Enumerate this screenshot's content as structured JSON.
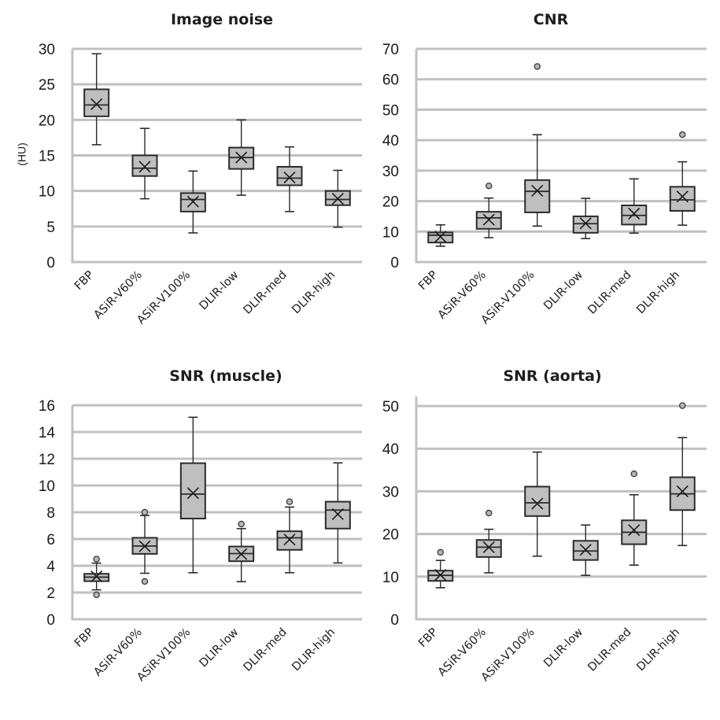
{
  "chart_data": [
    {
      "type": "box",
      "title": "Image noise",
      "xlabel": "",
      "ylabel": "(HU)",
      "ylim": [
        0,
        30
      ],
      "yticks": [
        0,
        5,
        10,
        15,
        20,
        25,
        30
      ],
      "grid": true,
      "categories": [
        "FBP",
        "ASiR-V60%",
        "ASiR-V100%",
        "DLIR-low",
        "DLIR-med",
        "DLIR-high"
      ],
      "series": [
        {
          "category": "FBP",
          "min": 16.5,
          "q1": 20.5,
          "median": 22.1,
          "q3": 24.3,
          "max": 29.3,
          "mean": 22.2,
          "outliers": []
        },
        {
          "category": "ASiR-V60%",
          "min": 8.9,
          "q1": 12.1,
          "median": 13.2,
          "q3": 15.0,
          "max": 18.8,
          "mean": 13.4,
          "outliers": []
        },
        {
          "category": "ASiR-V100%",
          "min": 4.1,
          "q1": 7.1,
          "median": 8.8,
          "q3": 9.7,
          "max": 12.8,
          "mean": 8.5,
          "outliers": []
        },
        {
          "category": "DLIR-low",
          "min": 9.4,
          "q1": 13.1,
          "median": 14.7,
          "q3": 16.1,
          "max": 20.0,
          "mean": 14.7,
          "outliers": []
        },
        {
          "category": "DLIR-med",
          "min": 7.1,
          "q1": 10.8,
          "median": 11.8,
          "q3": 13.4,
          "max": 16.2,
          "mean": 11.9,
          "outliers": []
        },
        {
          "category": "DLIR-high",
          "min": 4.9,
          "q1": 8.0,
          "median": 8.8,
          "q3": 10.0,
          "max": 12.9,
          "mean": 8.9,
          "outliers": []
        }
      ]
    },
    {
      "type": "box",
      "title": "CNR",
      "xlabel": "",
      "ylabel": "",
      "ylim": [
        0,
        70
      ],
      "yticks": [
        0,
        10,
        20,
        30,
        40,
        50,
        60,
        70
      ],
      "grid": true,
      "categories": [
        "FBP",
        "ASiR-V60%",
        "ASiR-V100%",
        "DLIR-low",
        "DLIR-med",
        "DLIR-high"
      ],
      "series": [
        {
          "category": "FBP",
          "min": 5.2,
          "q1": 6.4,
          "median": 8.8,
          "q3": 9.7,
          "max": 12.2,
          "mean": 8.3,
          "outliers": []
        },
        {
          "category": "ASiR-V60%",
          "min": 8.0,
          "q1": 10.9,
          "median": 14.5,
          "q3": 16.5,
          "max": 21.0,
          "mean": 13.9,
          "outliers": [
            25.0
          ]
        },
        {
          "category": "ASiR-V100%",
          "min": 11.8,
          "q1": 16.3,
          "median": 23.2,
          "q3": 26.9,
          "max": 41.8,
          "mean": 23.4,
          "outliers": [
            64.2
          ]
        },
        {
          "category": "DLIR-low",
          "min": 7.7,
          "q1": 9.6,
          "median": 12.6,
          "q3": 15.0,
          "max": 20.9,
          "mean": 12.7,
          "outliers": []
        },
        {
          "category": "DLIR-med",
          "min": 9.5,
          "q1": 12.3,
          "median": 15.3,
          "q3": 18.6,
          "max": 27.3,
          "mean": 15.9,
          "outliers": []
        },
        {
          "category": "DLIR-high",
          "min": 12.1,
          "q1": 16.8,
          "median": 20.4,
          "q3": 24.7,
          "max": 32.9,
          "mean": 21.5,
          "outliers": [
            41.8
          ]
        }
      ]
    },
    {
      "type": "box",
      "title": "SNR (muscle)",
      "xlabel": "",
      "ylabel": "",
      "ylim": [
        0,
        16
      ],
      "yticks": [
        0,
        2,
        4,
        6,
        8,
        10,
        12,
        14,
        16
      ],
      "grid": true,
      "categories": [
        "FBP",
        "ASiR-V60%",
        "ASiR-V100%",
        "DLIR-low",
        "DLIR-med",
        "DLIR-high"
      ],
      "series": [
        {
          "category": "FBP",
          "min": 2.2,
          "q1": 2.85,
          "median": 3.15,
          "q3": 3.4,
          "max": 4.2,
          "mean": 3.2,
          "outliers": [
            4.5,
            1.83
          ]
        },
        {
          "category": "ASiR-V60%",
          "min": 3.44,
          "q1": 4.89,
          "median": 5.48,
          "q3": 6.09,
          "max": 7.76,
          "mean": 5.46,
          "outliers": [
            8.0,
            2.83
          ]
        },
        {
          "category": "ASiR-V100%",
          "min": 3.48,
          "q1": 7.53,
          "median": 9.36,
          "q3": 11.67,
          "max": 15.1,
          "mean": 9.43,
          "outliers": []
        },
        {
          "category": "DLIR-low",
          "min": 2.81,
          "q1": 4.34,
          "median": 4.91,
          "q3": 5.44,
          "max": 6.78,
          "mean": 4.87,
          "outliers": [
            7.12
          ]
        },
        {
          "category": "DLIR-med",
          "min": 3.48,
          "q1": 5.19,
          "median": 6.09,
          "q3": 6.58,
          "max": 8.39,
          "mean": 5.96,
          "outliers": [
            8.79
          ]
        },
        {
          "category": "DLIR-high",
          "min": 4.21,
          "q1": 6.78,
          "median": 8.16,
          "q3": 8.79,
          "max": 11.69,
          "mean": 7.86,
          "outliers": []
        }
      ]
    },
    {
      "type": "box",
      "title": "SNR (aorta)",
      "xlabel": "",
      "ylabel": "",
      "ylim": [
        0,
        50
      ],
      "yticks": [
        0,
        10,
        20,
        30,
        40,
        50
      ],
      "grid": true,
      "categories": [
        "FBP",
        "ASiR-V60%",
        "ASiR-V100%",
        "DLIR-low",
        "DLIR-med",
        "DLIR-high"
      ],
      "series": [
        {
          "category": "FBP",
          "min": 7.4,
          "q1": 9.0,
          "median": 10.3,
          "q3": 11.4,
          "max": 13.8,
          "mean": 10.4,
          "outliers": [
            15.7
          ]
        },
        {
          "category": "ASiR-V60%",
          "min": 10.9,
          "q1": 14.6,
          "median": 16.9,
          "q3": 18.6,
          "max": 21.1,
          "mean": 16.9,
          "outliers": [
            24.9
          ]
        },
        {
          "category": "ASiR-V100%",
          "min": 14.8,
          "q1": 24.2,
          "median": 27.3,
          "q3": 31.1,
          "max": 39.2,
          "mean": 27.1,
          "outliers": []
        },
        {
          "category": "DLIR-low",
          "min": 10.3,
          "q1": 13.9,
          "median": 16.0,
          "q3": 18.4,
          "max": 22.1,
          "mean": 16.3,
          "outliers": []
        },
        {
          "category": "DLIR-med",
          "min": 12.7,
          "q1": 17.6,
          "median": 20.4,
          "q3": 23.2,
          "max": 29.2,
          "mean": 20.9,
          "outliers": [
            34.1
          ]
        },
        {
          "category": "DLIR-high",
          "min": 17.3,
          "q1": 25.6,
          "median": 29.4,
          "q3": 33.3,
          "max": 42.6,
          "mean": 30.0,
          "outliers": [
            50.1
          ]
        }
      ]
    }
  ]
}
